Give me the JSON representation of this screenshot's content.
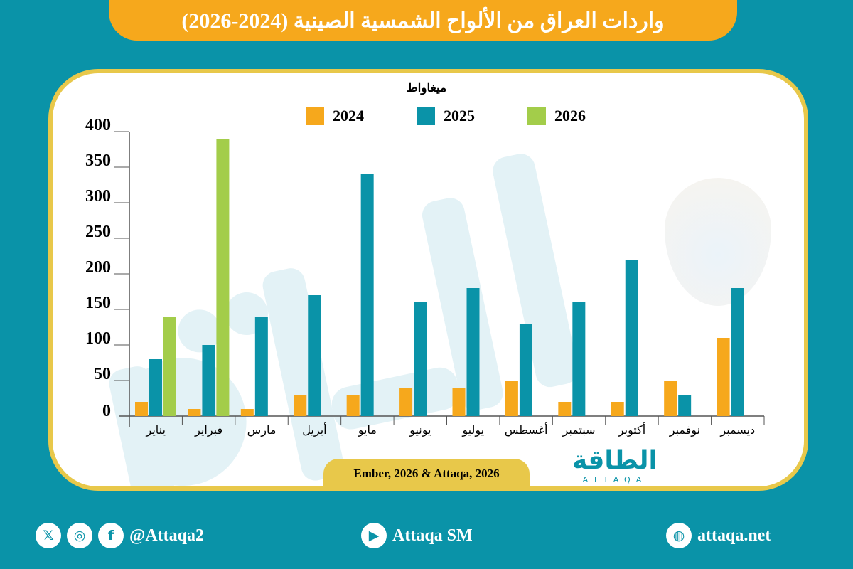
{
  "title": "واردات العراق من الألواح الشمسية الصينية (2024-2026)",
  "source": "Ember, 2026 & Attaqa, 2026",
  "logo": {
    "arabic": "الطاقة",
    "latin": "ATTAQA"
  },
  "footer": {
    "social_handle": "@Attaqa2",
    "youtube": "Attaqa SM",
    "website": "attaqa.net",
    "icons": [
      "x-icon",
      "instagram-icon",
      "facebook-icon",
      "youtube-icon",
      "globe-icon"
    ]
  },
  "colors": {
    "background": "#0a93a8",
    "banner": "#f6a81c",
    "border": "#e8c84a"
  },
  "chart_data": {
    "type": "bar",
    "title": "واردات العراق من الألواح الشمسية الصينية (2024-2026)",
    "ylabel": "ميغاواط",
    "xlabel": "",
    "ylim": [
      0,
      400
    ],
    "yticks": [
      0,
      50,
      100,
      150,
      200,
      250,
      300,
      350,
      400
    ],
    "grid": false,
    "legend": "top-center",
    "categories": [
      "يناير",
      "فبراير",
      "مارس",
      "أبريل",
      "مايو",
      "يونيو",
      "يوليو",
      "أغسطس",
      "سبتمبر",
      "أكتوبر",
      "نوفمبر",
      "ديسمبر"
    ],
    "series": [
      {
        "name": "2024",
        "color": "#f6a81c",
        "values": [
          20,
          10,
          10,
          30,
          30,
          40,
          40,
          50,
          20,
          20,
          50,
          110
        ]
      },
      {
        "name": "2025",
        "color": "#0a93a8",
        "values": [
          80,
          100,
          140,
          170,
          340,
          160,
          180,
          130,
          160,
          220,
          30,
          180
        ]
      },
      {
        "name": "2026",
        "color": "#a3cd4a",
        "values": [
          140,
          390,
          null,
          null,
          null,
          null,
          null,
          null,
          null,
          null,
          null,
          null
        ]
      }
    ]
  }
}
